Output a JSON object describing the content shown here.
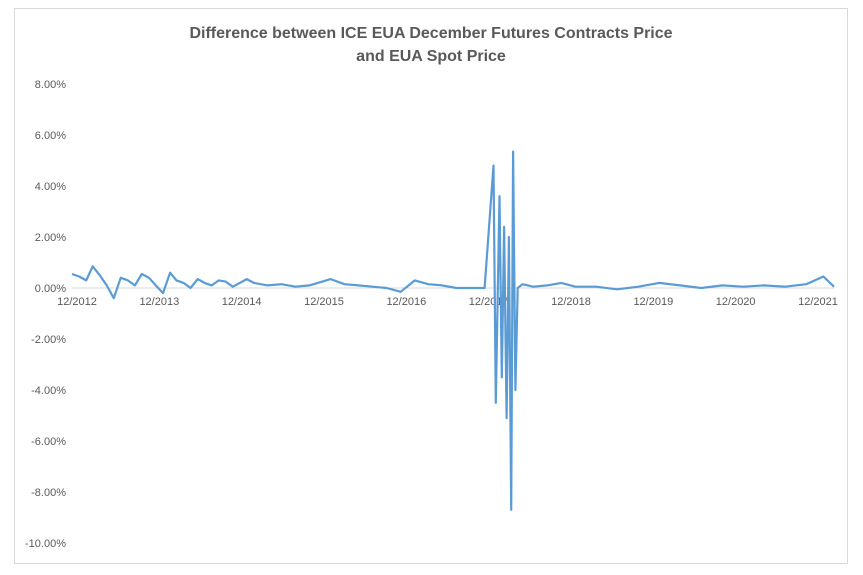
{
  "chart_data": {
    "type": "line",
    "title": [
      "Difference between ICE EUA December Futures Contracts Price",
      "and EUA Spot Price"
    ],
    "xlabel": "",
    "ylabel": "",
    "x_range": [
      "2012-12-01",
      "2021-12-31"
    ],
    "ylim": [
      -10.0,
      8.0
    ],
    "y_ticks": [
      8,
      6,
      4,
      2,
      0,
      -2,
      -4,
      -6,
      -8,
      -10
    ],
    "y_tick_labels": [
      "8.00%",
      "6.00%",
      "4.00%",
      "2.00%",
      "0.00%",
      "-2.00%",
      "-4.00%",
      "-6.00%",
      "-8.00%",
      "-10.00%"
    ],
    "x_tick_labels": [
      "12/2012",
      "12/2013",
      "12/2014",
      "12/2015",
      "12/2016",
      "12/2017",
      "12/2018",
      "12/2019",
      "12/2020",
      "12/2021"
    ],
    "grid": false,
    "legend": "none",
    "series": [
      {
        "color": "#5b9bd5",
        "points": [
          [
            "2012-12-01",
            0.55
          ],
          [
            "2013-01-01",
            0.45
          ],
          [
            "2013-02-01",
            0.3
          ],
          [
            "2013-03-01",
            0.85
          ],
          [
            "2013-04-01",
            0.5
          ],
          [
            "2013-05-01",
            0.1
          ],
          [
            "2013-06-01",
            -0.4
          ],
          [
            "2013-07-01",
            0.4
          ],
          [
            "2013-08-01",
            0.3
          ],
          [
            "2013-09-01",
            0.1
          ],
          [
            "2013-10-01",
            0.55
          ],
          [
            "2013-11-01",
            0.4
          ],
          [
            "2013-12-01",
            0.1
          ],
          [
            "2014-01-01",
            -0.2
          ],
          [
            "2014-02-01",
            0.6
          ],
          [
            "2014-03-01",
            0.3
          ],
          [
            "2014-04-01",
            0.2
          ],
          [
            "2014-05-01",
            0.0
          ],
          [
            "2014-06-01",
            0.35
          ],
          [
            "2014-07-01",
            0.2
          ],
          [
            "2014-08-01",
            0.1
          ],
          [
            "2014-09-01",
            0.3
          ],
          [
            "2014-10-01",
            0.25
          ],
          [
            "2014-11-01",
            0.05
          ],
          [
            "2015-01-01",
            0.35
          ],
          [
            "2015-02-01",
            0.2
          ],
          [
            "2015-04-01",
            0.1
          ],
          [
            "2015-06-01",
            0.15
          ],
          [
            "2015-08-01",
            0.05
          ],
          [
            "2015-10-01",
            0.1
          ],
          [
            "2016-01-01",
            0.35
          ],
          [
            "2016-03-01",
            0.15
          ],
          [
            "2016-05-01",
            0.1
          ],
          [
            "2016-07-01",
            0.05
          ],
          [
            "2016-09-01",
            0.0
          ],
          [
            "2016-11-01",
            -0.15
          ],
          [
            "2017-01-01",
            0.3
          ],
          [
            "2017-03-01",
            0.15
          ],
          [
            "2017-05-01",
            0.1
          ],
          [
            "2017-07-01",
            0.0
          ],
          [
            "2017-09-01",
            0.0
          ],
          [
            "2017-11-01",
            0.0
          ],
          [
            "2017-12-10",
            4.8
          ],
          [
            "2017-12-20",
            -4.5
          ],
          [
            "2018-01-05",
            3.6
          ],
          [
            "2018-01-15",
            -3.5
          ],
          [
            "2018-01-25",
            2.4
          ],
          [
            "2018-02-05",
            -5.1
          ],
          [
            "2018-02-15",
            2.0
          ],
          [
            "2018-02-25",
            -8.7
          ],
          [
            "2018-03-05",
            5.35
          ],
          [
            "2018-03-15",
            -4.0
          ],
          [
            "2018-03-25",
            0.0
          ],
          [
            "2018-04-15",
            0.15
          ],
          [
            "2018-06-01",
            0.05
          ],
          [
            "2018-08-01",
            0.1
          ],
          [
            "2018-10-01",
            0.2
          ],
          [
            "2018-12-01",
            0.05
          ],
          [
            "2019-03-01",
            0.05
          ],
          [
            "2019-06-01",
            -0.05
          ],
          [
            "2019-09-01",
            0.05
          ],
          [
            "2019-12-01",
            0.2
          ],
          [
            "2020-03-01",
            0.1
          ],
          [
            "2020-06-01",
            0.0
          ],
          [
            "2020-09-01",
            0.1
          ],
          [
            "2020-12-01",
            0.05
          ],
          [
            "2021-03-01",
            0.1
          ],
          [
            "2021-06-01",
            0.05
          ],
          [
            "2021-09-01",
            0.15
          ],
          [
            "2021-11-15",
            0.45
          ],
          [
            "2021-12-31",
            0.05
          ]
        ]
      }
    ]
  }
}
